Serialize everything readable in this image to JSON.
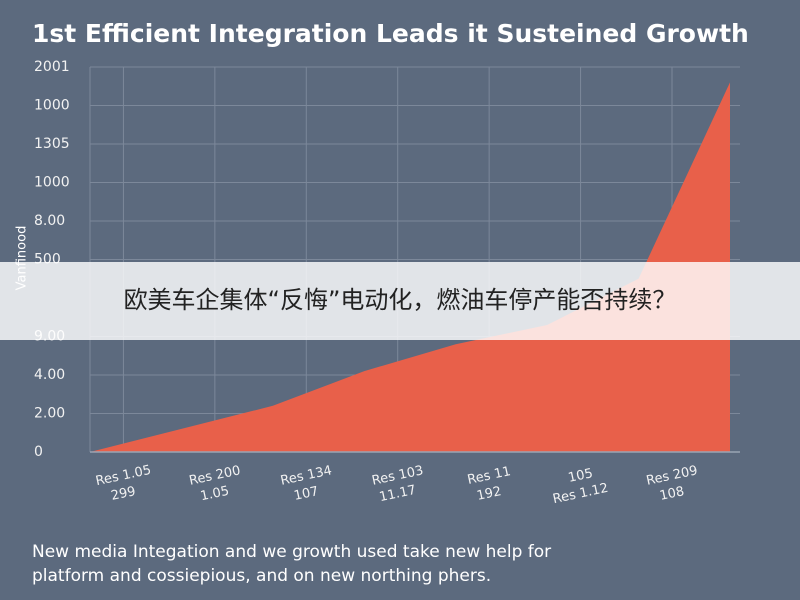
{
  "chart_data": {
    "type": "area",
    "title": "1st Efficient Integration Leads it Susteined Growth",
    "y_label": "Vanfinood",
    "categories": [
      null,
      [
        "Res 1.05",
        "299"
      ],
      [
        "Res 200",
        "1.05"
      ],
      [
        "Res 134",
        "107"
      ],
      [
        "Res 103",
        "11.17"
      ],
      [
        "Res 11",
        "192"
      ],
      [
        "105",
        "Res 1.12"
      ],
      [
        "Res 209",
        "108"
      ]
    ],
    "values": [
      0,
      0.6,
      1.2,
      2.1,
      2.8,
      3.3,
      4.5,
      9.6
    ],
    "color": "#e8604a",
    "ylim": [
      0,
      10
    ],
    "yticks": [
      0,
      {
        "value": 1,
        "label": "2.00"
      },
      {
        "value": 2,
        "label": "4.00"
      },
      {
        "value": 3,
        "label": "9.00"
      },
      {
        "value": 5,
        "label": "500"
      },
      {
        "value": 6,
        "label": "8.00"
      },
      {
        "value": 7,
        "label": "1000"
      },
      {
        "value": 8,
        "label": "1305"
      },
      {
        "value": 9,
        "label": "1000"
      },
      {
        "value": 10,
        "label": "2001"
      }
    ],
    "grid": true,
    "caption": [
      "New media Integation and we growth used take new help for",
      "platform and cossiepious, and on new northing phers."
    ]
  },
  "overlay_banner": "欧美车企集体“反悔”电动化，燃油车停产能否持续？"
}
